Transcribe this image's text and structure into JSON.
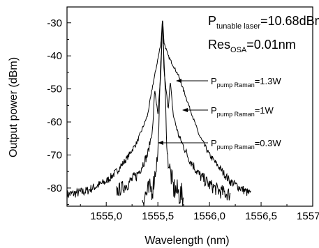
{
  "chart_data": {
    "type": "line",
    "title": "",
    "xlabel": "Wavelength (nm)",
    "ylabel": "Output power (dBm)",
    "xlim": [
      1554.62,
      1557.0
    ],
    "ylim": [
      -85.5,
      -25.2
    ],
    "x_ticks": [
      1555.0,
      1555.5,
      1556.0,
      1556.5,
      1557.0
    ],
    "x_tick_labels": [
      "1555,0",
      "1555,5",
      "1556,0",
      "1556,5",
      "1557,0"
    ],
    "y_ticks": [
      -30,
      -40,
      -50,
      -60,
      -70,
      -80
    ],
    "y_tick_labels": [
      "-30",
      "-40",
      "-50",
      "-60",
      "-70",
      "-80"
    ],
    "grid": false,
    "legend": "none",
    "annotations": {
      "param1": {
        "main": "P",
        "sub": "tunable laser",
        "rest": "=10.68dBm"
      },
      "param2": {
        "main": "Res",
        "sub": "OSA",
        "rest": "=0.01nm"
      },
      "label_1_3W": {
        "main": "P",
        "sub": "pump Raman",
        "rest": "=1.3W"
      },
      "label_1W": {
        "main": "P",
        "sub": "pump Raman",
        "rest": "=1W"
      },
      "label_0_3W": {
        "main": "P",
        "sub": "pump Raman",
        "rest": "=0.3W"
      }
    },
    "series": [
      {
        "x": [
          1554.62,
          1554.8,
          1555.0,
          1555.1,
          1555.2,
          1555.3,
          1555.4,
          1555.45,
          1555.5,
          1555.53,
          1555.545,
          1555.56,
          1555.6,
          1555.65,
          1555.7,
          1555.8,
          1555.9,
          1556.0,
          1556.1,
          1556.2,
          1556.3,
          1556.4
        ],
        "y": [
          -82,
          -81,
          -78,
          -75,
          -71,
          -66,
          -58,
          -49,
          -41,
          -36,
          -28.5,
          -36,
          -40,
          -43,
          -46,
          -55,
          -64,
          -70,
          -74,
          -78,
          -80,
          -82
        ]
      },
      {
        "x": [
          1555.1,
          1555.2,
          1555.3,
          1555.4,
          1555.45,
          1555.47,
          1555.5,
          1555.53,
          1555.545,
          1555.56,
          1555.6,
          1555.62,
          1555.65,
          1555.7,
          1555.8,
          1555.9,
          1556.0,
          1556.1,
          1556.2
        ],
        "y": [
          -81,
          -79,
          -76,
          -70,
          -62,
          -50,
          -58,
          -45,
          -28.5,
          -45,
          -56,
          -48,
          -58,
          -64,
          -71,
          -76,
          -79,
          -81,
          -82
        ]
      },
      {
        "x": [
          1555.35,
          1555.45,
          1555.5,
          1555.52,
          1555.545,
          1555.57,
          1555.59,
          1555.65,
          1555.75
        ],
        "y": [
          -83,
          -80,
          -70,
          -50,
          -28.5,
          -50,
          -70,
          -80,
          -83
        ]
      }
    ]
  }
}
